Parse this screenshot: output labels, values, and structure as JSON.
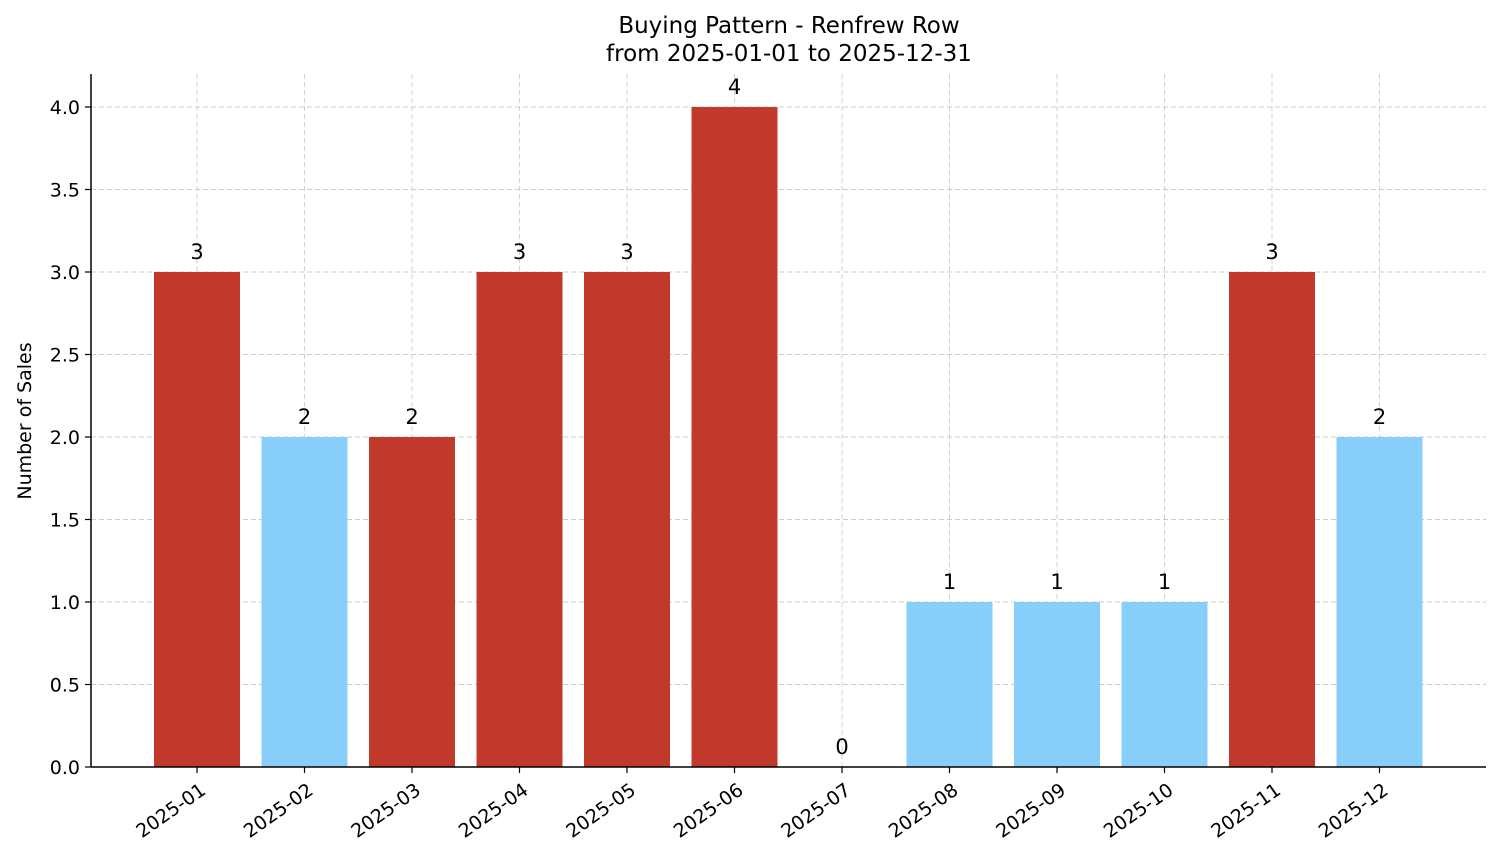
{
  "chart_data": {
    "type": "bar",
    "title": "Buying Pattern - Renfrew Row",
    "subtitle": "from 2025-01-01 to 2025-12-31",
    "xlabel": "",
    "ylabel": "Number of Sales",
    "categories": [
      "2025-01",
      "2025-02",
      "2025-03",
      "2025-04",
      "2025-05",
      "2025-06",
      "2025-07",
      "2025-08",
      "2025-09",
      "2025-10",
      "2025-11",
      "2025-12"
    ],
    "values": [
      3,
      2,
      2,
      3,
      3,
      4,
      0,
      1,
      1,
      1,
      3,
      2
    ],
    "bar_colors": [
      "#c0392b",
      "#87cefa",
      "#c0392b",
      "#c0392b",
      "#c0392b",
      "#c0392b",
      "#87cefa",
      "#87cefa",
      "#87cefa",
      "#87cefa",
      "#c0392b",
      "#87cefa"
    ],
    "ylim": [
      0,
      4.2
    ],
    "yticks": [
      "0.0",
      "0.5",
      "1.0",
      "1.5",
      "2.0",
      "2.5",
      "3.0",
      "3.5",
      "4.0"
    ],
    "grid": true,
    "legend": "none"
  }
}
